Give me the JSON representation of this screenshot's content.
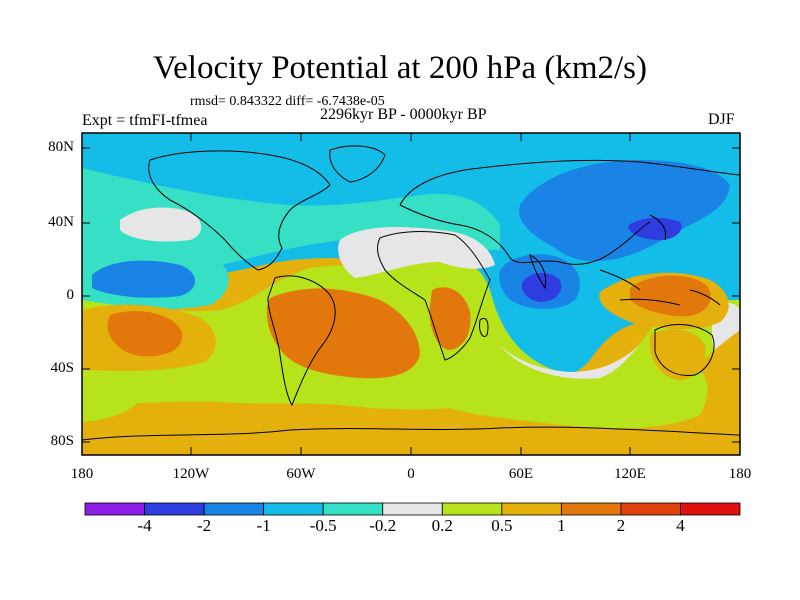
{
  "title": "Velocity Potential at 200 hPa (km2/s)",
  "stats": "rmsd= 0.843322 diff= -6.7438e-05",
  "expt": "Expt = tfmFI-tfmea",
  "period": "2296kyr BP - 0000kyr BP",
  "season": "DJF",
  "lat_labels": [
    "80N",
    "40N",
    "0",
    "40S",
    "80S"
  ],
  "lon_labels": [
    "180",
    "120W",
    "60W",
    "0",
    "60E",
    "120E",
    "180"
  ],
  "colorbar": {
    "labels": [
      "-4",
      "-2",
      "-1",
      "-0.5",
      "-0.2",
      "0.2",
      "0.5",
      "1",
      "2",
      "4"
    ],
    "colors": [
      "#8c1de5",
      "#2e3ce0",
      "#1a84e6",
      "#14bde8",
      "#35e0c4",
      "#e6e6e6",
      "#b6e31a",
      "#e4b00c",
      "#e2780c",
      "#e0400b",
      "#e01010"
    ]
  },
  "map_colors": {
    "ocean_cyan": "#14bde8",
    "teal": "#35e0c4",
    "neutral": "#e6e6e6",
    "blue": "#1a84e6",
    "dark_blue": "#2e3ce0",
    "lime": "#b6e31a",
    "gold": "#e4b00c",
    "orange": "#e2780c",
    "red_orange": "#e0400b"
  }
}
